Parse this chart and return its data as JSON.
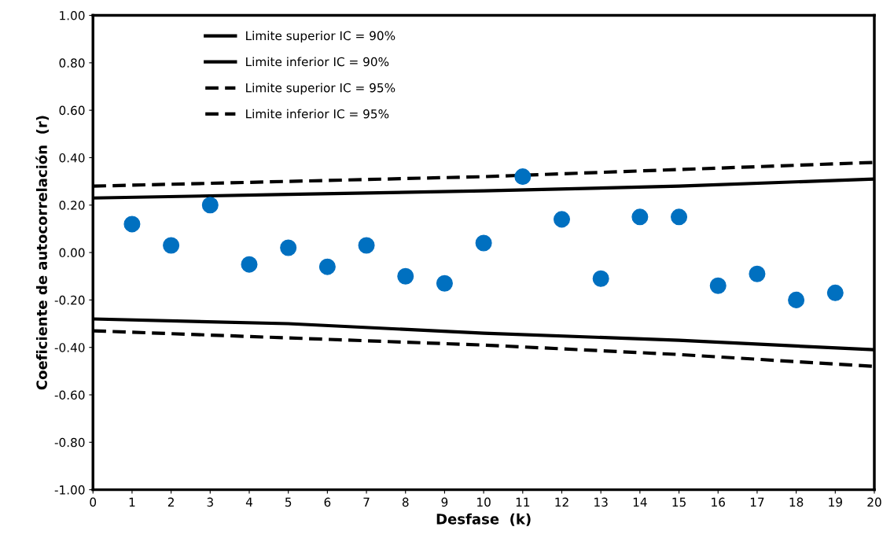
{
  "chart_data": {
    "type": "scatter",
    "xlabel": "Desfase  (k)",
    "ylabel": "Coeficiente de autocorrelación  (r)",
    "xlim": [
      0,
      20
    ],
    "xticks": [
      0,
      1,
      2,
      3,
      4,
      5,
      6,
      7,
      8,
      9,
      10,
      11,
      12,
      13,
      14,
      15,
      16,
      17,
      18,
      19,
      20
    ],
    "ylim": [
      -1,
      1
    ],
    "yticks": [
      {
        "value": -1,
        "label": "-1.00"
      },
      {
        "value": -0.8,
        "label": "-0.80"
      },
      {
        "value": -0.6,
        "label": "-0.60"
      },
      {
        "value": -0.4,
        "label": "-0.40"
      },
      {
        "value": -0.2,
        "label": "-0.20"
      },
      {
        "value": 0,
        "label": "0.00"
      },
      {
        "value": 0.2,
        "label": "0.20"
      },
      {
        "value": 0.4,
        "label": "0.40"
      },
      {
        "value": 0.6,
        "label": "0.60"
      },
      {
        "value": 0.8,
        "label": "0.80"
      },
      {
        "value": 1,
        "label": "1.00"
      }
    ],
    "grid": false,
    "legend": "top left",
    "series": [
      {
        "color": "#0070c0",
        "marker": "circle",
        "x": [
          1,
          2,
          3,
          4,
          5,
          6,
          7,
          8,
          9,
          10,
          11,
          12,
          13,
          14,
          15,
          16,
          17,
          18,
          19
        ],
        "values": [
          0.12,
          0.03,
          0.2,
          -0.05,
          0.02,
          -0.06,
          0.03,
          -0.1,
          -0.13,
          0.04,
          0.32,
          0.14,
          -0.11,
          0.15,
          0.15,
          -0.14,
          -0.09,
          -0.2,
          -0.17
        ]
      },
      {
        "type": "line",
        "name": "Limite superior IC = 90%",
        "color": "#000000",
        "line_style": "solid",
        "marker": "none",
        "x": [
          0,
          5,
          10,
          15,
          20
        ],
        "values": [
          0.23,
          0.245,
          0.26,
          0.28,
          0.31
        ]
      },
      {
        "type": "line",
        "name": "Limite inferior IC = 90%",
        "color": "#000000",
        "line_style": "solid",
        "marker": "none",
        "x": [
          0,
          5,
          10,
          15,
          20
        ],
        "values": [
          -0.28,
          -0.3,
          -0.34,
          -0.37,
          -0.41
        ]
      },
      {
        "type": "line",
        "name": "Limite superior IC = 95%",
        "color": "#000000",
        "line_style": "dashed",
        "marker": "none",
        "x": [
          0,
          5,
          10,
          15,
          20
        ],
        "values": [
          0.28,
          0.3,
          0.32,
          0.35,
          0.38
        ]
      },
      {
        "type": "line",
        "name": "Limite inferior IC = 95%",
        "color": "#000000",
        "line_style": "dashed",
        "marker": "none",
        "x": [
          0,
          5,
          10,
          15,
          20
        ],
        "values": [
          -0.33,
          -0.36,
          -0.39,
          -0.43,
          -0.48
        ]
      }
    ]
  }
}
